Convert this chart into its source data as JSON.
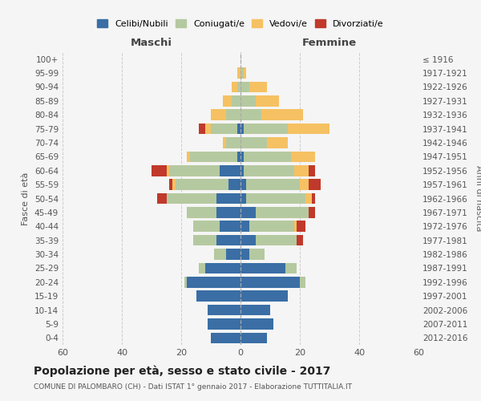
{
  "age_groups": [
    "0-4",
    "5-9",
    "10-14",
    "15-19",
    "20-24",
    "25-29",
    "30-34",
    "35-39",
    "40-44",
    "45-49",
    "50-54",
    "55-59",
    "60-64",
    "65-69",
    "70-74",
    "75-79",
    "80-84",
    "85-89",
    "90-94",
    "95-99",
    "100+"
  ],
  "birth_years": [
    "2012-2016",
    "2007-2011",
    "2002-2006",
    "1997-2001",
    "1992-1996",
    "1987-1991",
    "1982-1986",
    "1977-1981",
    "1972-1976",
    "1967-1971",
    "1962-1966",
    "1957-1961",
    "1952-1956",
    "1947-1951",
    "1942-1946",
    "1937-1941",
    "1932-1936",
    "1927-1931",
    "1922-1926",
    "1917-1921",
    "≤ 1916"
  ],
  "male": {
    "celibi": [
      10,
      11,
      11,
      15,
      18,
      12,
      5,
      8,
      7,
      8,
      8,
      4,
      7,
      1,
      0,
      1,
      0,
      0,
      0,
      0,
      0
    ],
    "coniugati": [
      0,
      0,
      0,
      0,
      1,
      2,
      4,
      8,
      9,
      10,
      17,
      18,
      17,
      16,
      5,
      9,
      5,
      3,
      1,
      0,
      0
    ],
    "vedovi": [
      0,
      0,
      0,
      0,
      0,
      0,
      0,
      0,
      0,
      0,
      0,
      1,
      1,
      1,
      1,
      2,
      5,
      3,
      2,
      1,
      0
    ],
    "divorziati": [
      0,
      0,
      0,
      0,
      0,
      0,
      0,
      0,
      0,
      0,
      3,
      1,
      5,
      0,
      0,
      2,
      0,
      0,
      0,
      0,
      0
    ]
  },
  "female": {
    "nubili": [
      9,
      11,
      10,
      16,
      20,
      15,
      3,
      5,
      3,
      5,
      2,
      2,
      1,
      1,
      0,
      1,
      0,
      0,
      0,
      0,
      0
    ],
    "coniugate": [
      0,
      0,
      0,
      0,
      2,
      4,
      5,
      14,
      15,
      18,
      20,
      18,
      17,
      16,
      9,
      15,
      7,
      5,
      3,
      1,
      0
    ],
    "vedove": [
      0,
      0,
      0,
      0,
      0,
      0,
      0,
      0,
      1,
      0,
      2,
      3,
      5,
      8,
      7,
      14,
      14,
      8,
      6,
      1,
      0
    ],
    "divorziate": [
      0,
      0,
      0,
      0,
      0,
      0,
      0,
      2,
      3,
      2,
      1,
      4,
      2,
      0,
      0,
      0,
      0,
      0,
      0,
      0,
      0
    ]
  },
  "colors": {
    "celibi": "#3a6ea5",
    "coniugati": "#b5c9a0",
    "vedovi": "#f5c163",
    "divorziati": "#c0392b"
  },
  "title": "Popolazione per età, sesso e stato civile - 2017",
  "subtitle": "COMUNE DI PALOMBARO (CH) - Dati ISTAT 1° gennaio 2017 - Elaborazione TUTTITALIA.IT",
  "xlabel_left": "Maschi",
  "xlabel_right": "Femmine",
  "ylabel_left": "Fasce di età",
  "ylabel_right": "Anni di nascita",
  "xlim": 60,
  "bg_color": "#f5f5f5",
  "grid_color": "#cccccc",
  "legend_labels": [
    "Celibi/Nubili",
    "Coniugati/e",
    "Vedovi/e",
    "Divorziati/e"
  ]
}
